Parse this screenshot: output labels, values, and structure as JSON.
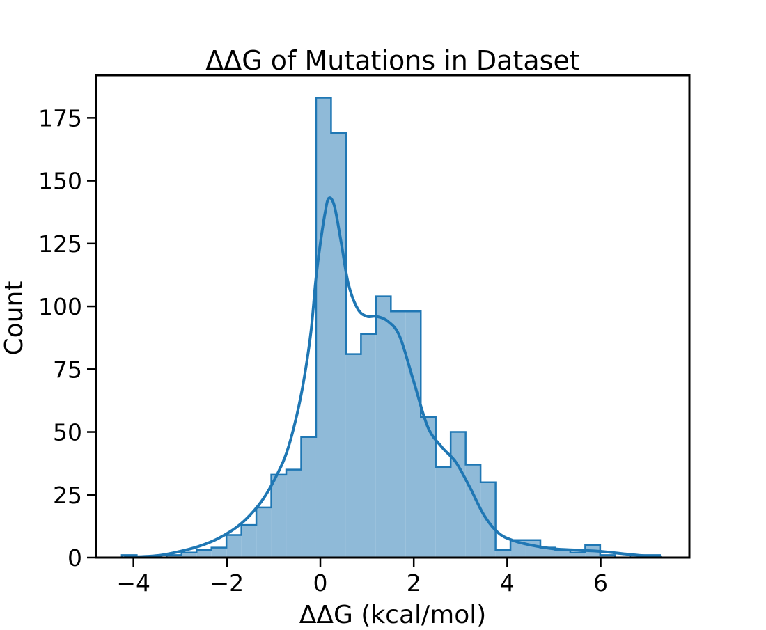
{
  "chart_data": {
    "type": "histogram",
    "title": "ΔΔG of Mutations in Dataset",
    "xlabel": "ΔΔG (kcal/mol)",
    "ylabel": "Count",
    "xlim": [
      -4.8,
      7.9
    ],
    "ylim": [
      0,
      192
    ],
    "xticks": [
      -4,
      -2,
      0,
      2,
      4,
      6
    ],
    "xtick_labels": [
      "−4",
      "−2",
      "0",
      "2",
      "4",
      "6"
    ],
    "yticks": [
      0,
      25,
      50,
      75,
      100,
      125,
      150,
      175
    ],
    "ytick_labels": [
      "0",
      "25",
      "50",
      "75",
      "100",
      "125",
      "150",
      "175"
    ],
    "grid": false,
    "colors": {
      "bar_fill": "#8fbad8",
      "bar_edge": "#1f77b4",
      "kde_line": "#1f77b4"
    },
    "bin_edges": [
      -4.25,
      -3.93,
      -3.61,
      -3.29,
      -2.97,
      -2.65,
      -2.33,
      -2.01,
      -1.69,
      -1.37,
      -1.05,
      -0.73,
      -0.41,
      -0.09,
      0.23,
      0.55,
      0.87,
      1.19,
      1.51,
      1.83,
      2.15,
      2.47,
      2.79,
      3.11,
      3.43,
      3.75,
      4.07,
      4.39,
      4.71,
      5.03,
      5.35,
      5.67,
      5.99,
      6.31,
      6.63,
      6.95,
      7.27
    ],
    "counts": [
      1,
      0,
      0,
      1,
      2,
      3,
      4,
      9,
      13,
      20,
      33,
      35,
      48,
      183,
      169,
      81,
      89,
      104,
      98,
      98,
      56,
      36,
      50,
      37,
      30,
      3,
      7,
      7,
      4,
      3,
      2,
      5,
      1,
      0,
      1,
      1
    ],
    "kde": {
      "x": [
        -4.2,
        -3.8,
        -3.4,
        -3.0,
        -2.6,
        -2.2,
        -1.8,
        -1.5,
        -1.2,
        -0.9,
        -0.7,
        -0.5,
        -0.35,
        -0.2,
        -0.1,
        0.0,
        0.1,
        0.18,
        0.3,
        0.45,
        0.6,
        0.8,
        1.0,
        1.2,
        1.45,
        1.7,
        2.0,
        2.3,
        2.6,
        2.9,
        3.2,
        3.5,
        3.8,
        4.1,
        4.5,
        5.0,
        5.5,
        6.0,
        6.5,
        7.0,
        7.3
      ],
      "y": [
        0.3,
        0.4,
        1.0,
        2.5,
        4.5,
        7.5,
        12,
        17,
        24,
        34,
        43,
        57,
        71,
        90,
        110,
        125,
        137,
        143,
        140,
        125,
        109,
        99,
        96,
        96,
        94,
        88,
        70,
        52,
        44,
        38,
        28,
        17,
        10,
        7,
        5,
        3.5,
        3,
        2.5,
        1.5,
        0.6,
        0.3
      ]
    }
  }
}
